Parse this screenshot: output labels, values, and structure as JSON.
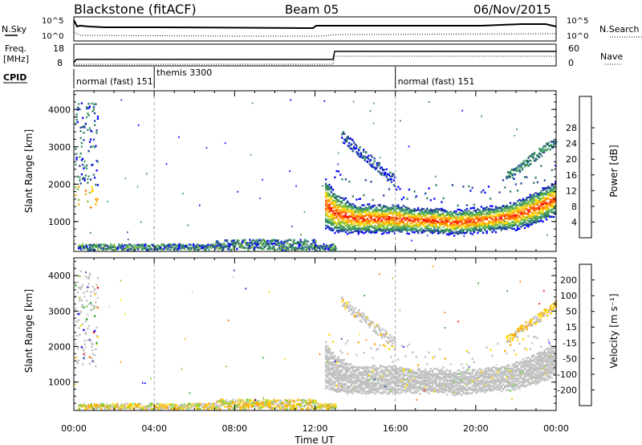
{
  "header": {
    "station": "Blackstone (fitACF)",
    "beam": "Beam 05",
    "date": "06/Nov/2015"
  },
  "top_panels": {
    "nsky_label": "N.Sky",
    "nsky_ticks": [
      "10^5",
      "10^0"
    ],
    "nsearch_label": "N.Search",
    "nsearch_ticks": [
      "10^5",
      "10^0"
    ],
    "freq_label": "Freq.",
    "freq_unit": "[MHz]",
    "freq_ticks": [
      "18",
      "8"
    ],
    "nave_label": "Nave",
    "nave_ticks": [
      "60",
      "0"
    ],
    "cpid_label": "CPID"
  },
  "cpid_segments": [
    {
      "label": "normal (fast) 151",
      "start_hour": 0.0
    },
    {
      "label": "themis 3300",
      "start_hour": 4.0
    },
    {
      "label": "normal (fast) 151",
      "start_hour": 16.0
    }
  ],
  "colors": {
    "power": [
      "#0000ff",
      "#1f3f9f",
      "#2f7f5f",
      "#3f9f5f",
      "#7fbf3f",
      "#ffd700",
      "#ffa500",
      "#ff6a00",
      "#ff0000"
    ],
    "velocity": [
      "#ff0000",
      "#ff6a00",
      "#ffa500",
      "#ffd700",
      "#c8c8c8",
      "#7fcf3f",
      "#2f9f2f",
      "#1f3f9f",
      "#0000ff"
    ],
    "scatter_gray": "#c0c0c0"
  },
  "chart_data": [
    {
      "type": "heatmap",
      "panel": "power",
      "xlabel": "",
      "ylabel": "Slant Range [km]",
      "xlim": [
        0,
        24
      ],
      "ylim": [
        200,
        4500
      ],
      "yticks": [
        "1000",
        "2000",
        "3000",
        "4000"
      ],
      "colorbar_label": "Power [dB]",
      "colorbar_ticks": [
        "4",
        "8",
        "12",
        "16",
        "20",
        "24",
        "28"
      ],
      "band": {
        "hours": [
          12.5,
          13,
          14,
          15,
          16,
          17,
          18,
          19,
          20,
          21,
          22,
          23,
          24
        ],
        "center_km": [
          1500,
          1250,
          1100,
          1100,
          1100,
          1050,
          1050,
          1000,
          1050,
          1100,
          1200,
          1400,
          1650
        ],
        "width_km": [
          600,
          500,
          350,
          350,
          350,
          300,
          300,
          300,
          300,
          300,
          350,
          400,
          400
        ]
      }
    },
    {
      "type": "heatmap",
      "panel": "velocity",
      "xlabel": "Time UT",
      "ylabel": "Slant Range [km]",
      "xlim": [
        0,
        24
      ],
      "ylim": [
        200,
        4500
      ],
      "xticks": [
        "00:00",
        "04:00",
        "08:00",
        "12:00",
        "16:00",
        "20:00",
        "00:00"
      ],
      "yticks": [
        "1000",
        "2000",
        "3000",
        "4000"
      ],
      "colorbar_label": "Velocity [m s⁻¹]",
      "colorbar_ticks": [
        "200",
        "100",
        "50",
        "15",
        "-15",
        "-50",
        "-100",
        "-200"
      ]
    }
  ]
}
